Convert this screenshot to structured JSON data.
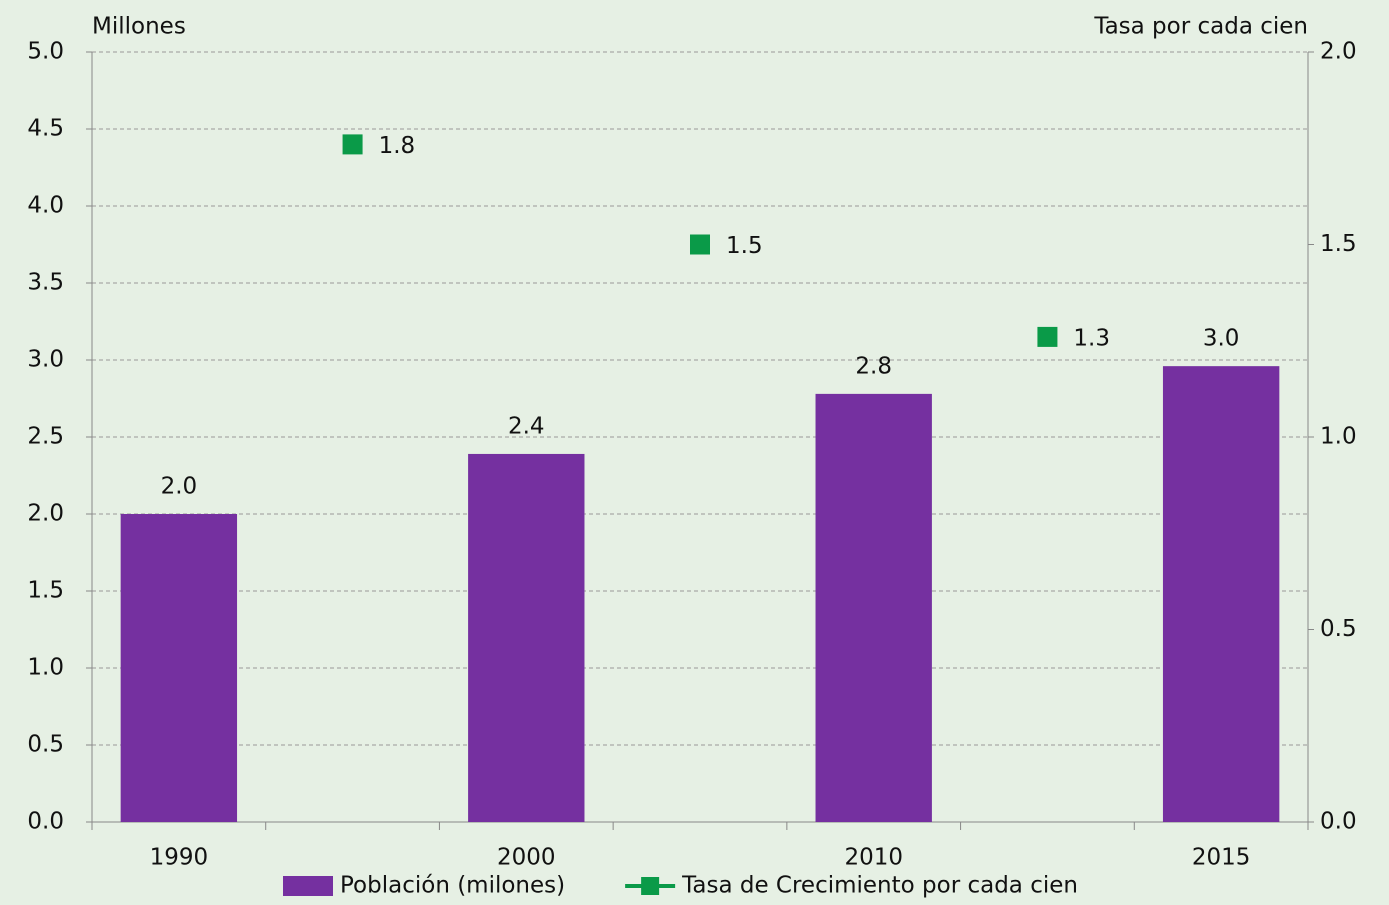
{
  "chart_data": {
    "type": "bar",
    "y_label": "Millones",
    "y2_label": "Tasa por cada cien",
    "categories": [
      "1990",
      null,
      "2000",
      null,
      "2010",
      null,
      "2015"
    ],
    "series": [
      {
        "name": "Población (milones)",
        "color": "#7530a0",
        "type": "bar",
        "values": [
          2.0,
          null,
          2.39,
          null,
          2.78,
          null,
          2.96
        ],
        "value_labels": [
          "2.0",
          null,
          "2.4",
          null,
          "2.8",
          null,
          "3.0"
        ]
      },
      {
        "name": "Tasa de Crecimiento por cada cien",
        "color": "#0a9a48",
        "type": "line",
        "axis": "y2",
        "values": [
          null,
          1.76,
          null,
          1.5,
          null,
          1.26,
          null
        ],
        "value_labels": [
          null,
          "1.8",
          null,
          "1.5",
          null,
          "1.3",
          null
        ]
      }
    ],
    "ylim": [
      0,
      5
    ],
    "yticks": [
      {
        "value": 0,
        "label": "0.0"
      },
      0.5,
      {
        "value": 1,
        "label": "1.0"
      },
      1.5,
      {
        "value": 2,
        "label": "2.0"
      },
      2.5,
      {
        "value": 3,
        "label": "3.0"
      },
      3.5,
      {
        "value": 4,
        "label": "4.0"
      },
      4.5,
      {
        "value": 5,
        "label": "5.0"
      }
    ],
    "y2lim": [
      0,
      2
    ],
    "y2ticks": [
      {
        "value": 0,
        "label": "0.0"
      },
      0.5,
      {
        "value": 1,
        "label": "1.0"
      },
      1.5,
      {
        "value": 2,
        "label": "2.0"
      }
    ],
    "grid": true,
    "legend": "bottom"
  }
}
